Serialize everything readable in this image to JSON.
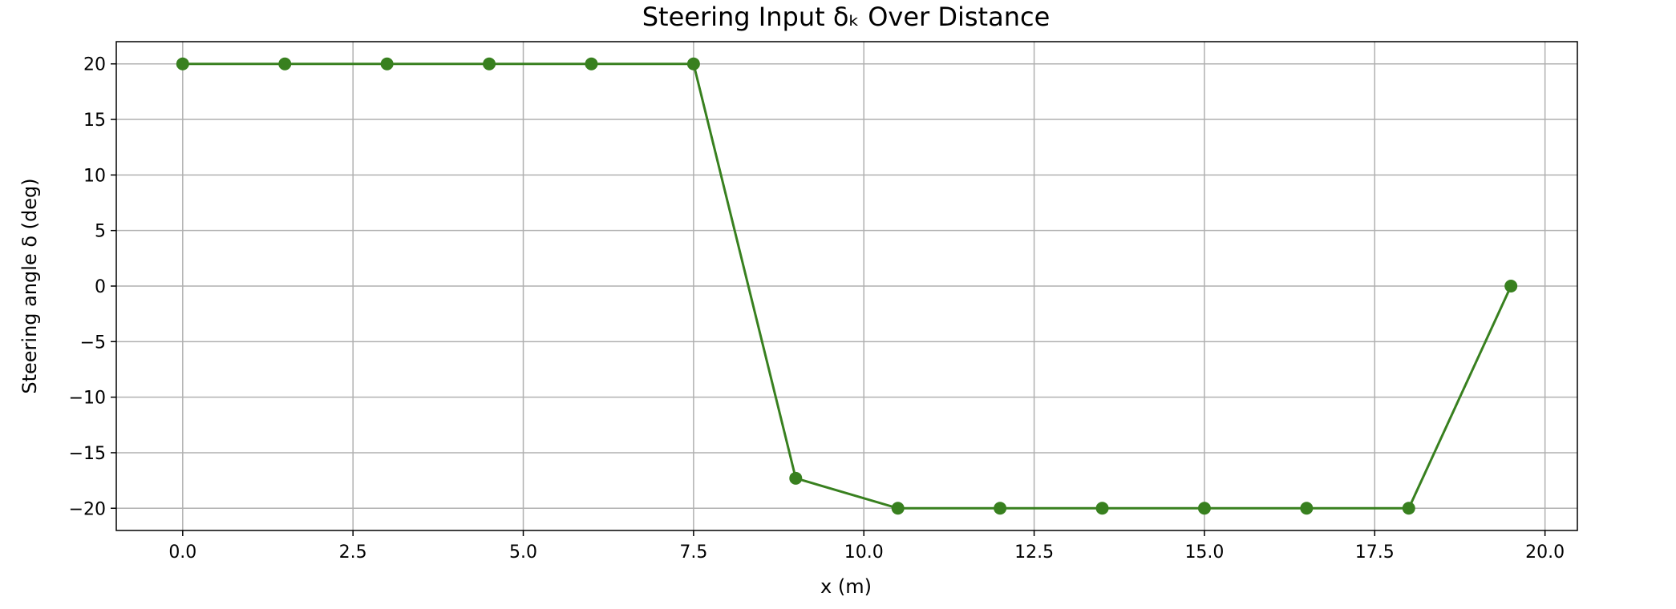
{
  "chart_data": {
    "type": "line",
    "title": "Steering Input δₖ Over Distance",
    "xlabel": "x (m)",
    "ylabel": "Steering angle δ (deg)",
    "xlim": [
      -0.975,
      20.475
    ],
    "ylim": [
      -22,
      22
    ],
    "xticks": [
      0.0,
      2.5,
      5.0,
      7.5,
      10.0,
      12.5,
      15.0,
      17.5,
      20.0
    ],
    "xtick_labels": [
      "0.0",
      "2.5",
      "5.0",
      "7.5",
      "10.0",
      "12.5",
      "15.0",
      "17.5",
      "20.0"
    ],
    "yticks": [
      20,
      15,
      10,
      5,
      0,
      -5,
      -10,
      -15,
      -20
    ],
    "ytick_labels": [
      "20",
      "15",
      "10",
      "5",
      "0",
      "−5",
      "−10",
      "−15",
      "−20"
    ],
    "grid": true,
    "color": "#38801f",
    "series": [
      {
        "x": [
          0.0,
          1.5,
          3.0,
          4.5,
          6.0,
          7.5,
          9.0,
          10.5,
          12.0,
          13.5,
          15.0,
          16.5,
          18.0,
          19.5
        ],
        "y": [
          20,
          20,
          20,
          20,
          20,
          20,
          -17.3,
          -20,
          -20,
          -20,
          -20,
          -20,
          -20,
          0
        ]
      }
    ]
  }
}
